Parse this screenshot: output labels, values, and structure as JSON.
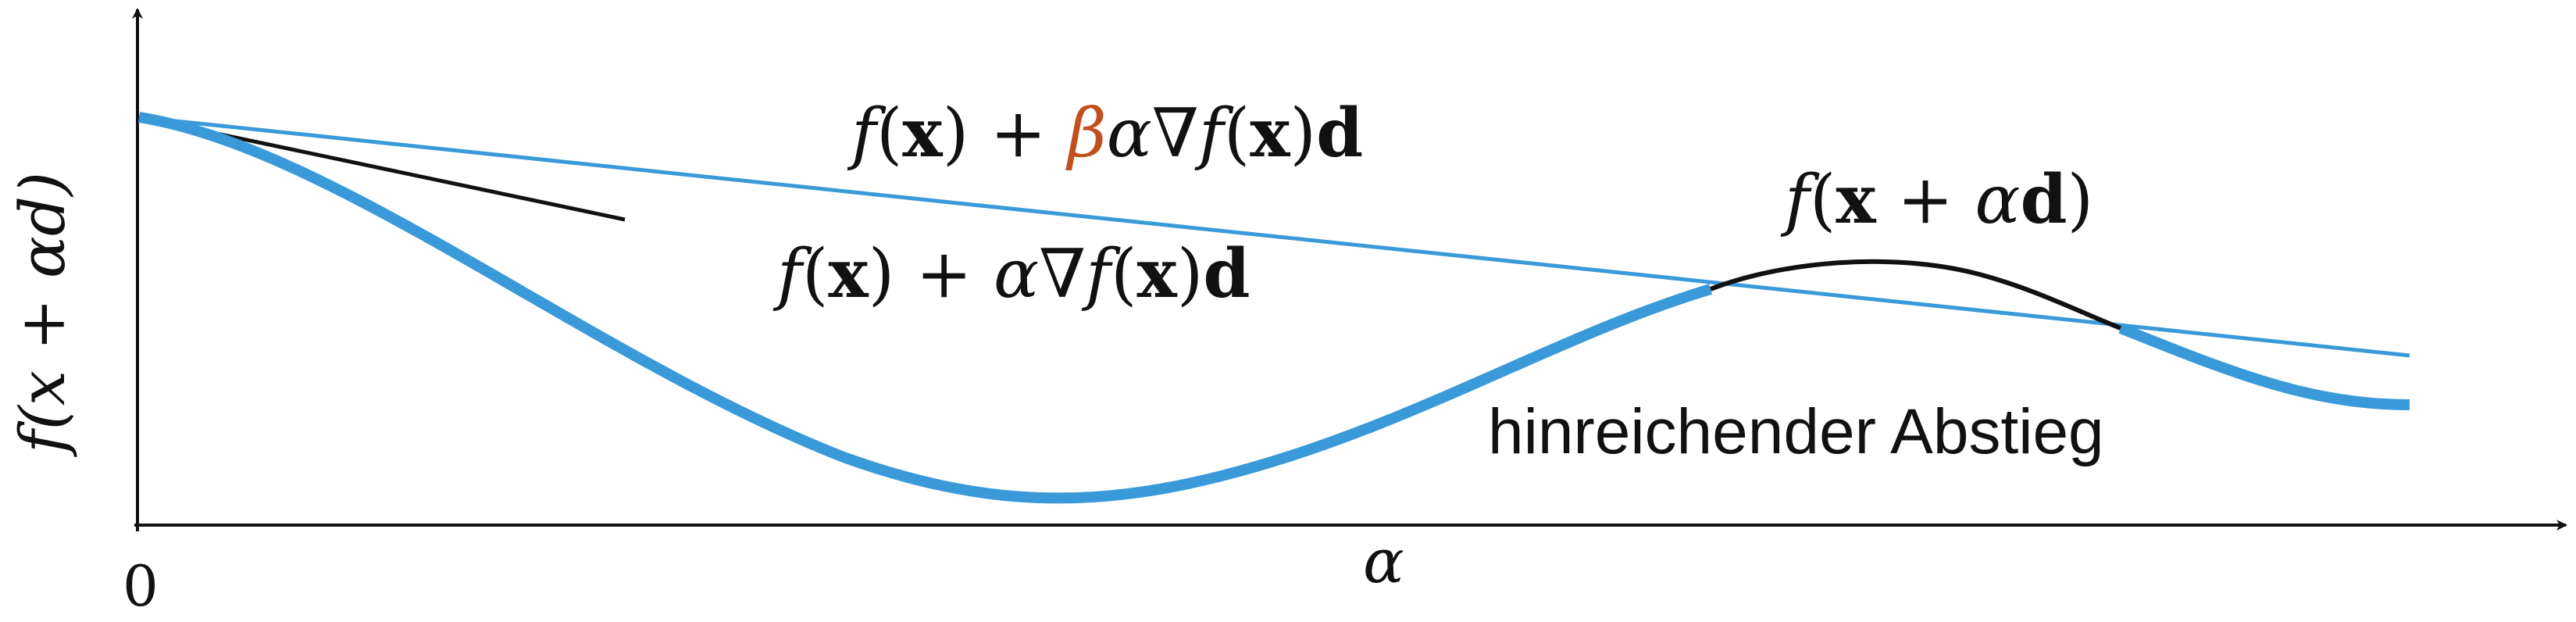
{
  "axes": {
    "x_label": "α",
    "y_label": "f(x + αd)",
    "origin_label": "0"
  },
  "labels": {
    "armijo_line": {
      "f": "f",
      "open_paren": "(",
      "x": "x",
      "close_plus": ") + ",
      "beta": "β",
      "alpha": "α",
      "grad": "∇",
      "f2": "f",
      "open2": "(",
      "x2": "x",
      "close2": ")",
      "d": "d"
    },
    "tangent_line": {
      "f": "f",
      "open_paren": "(",
      "x": "x",
      "close_plus": ") + ",
      "alpha": "α",
      "grad": "∇",
      "f2": "f",
      "open2": "(",
      "x2": "x",
      "close2": ")",
      "d": "d"
    },
    "function_curve": {
      "f": "f",
      "open_paren": "(",
      "x": "x",
      "plus": " + ",
      "alpha": "α",
      "d": "d",
      "close": ")"
    },
    "region_text": "hinreichender Abstieg"
  },
  "colors": {
    "curve_accepted": "#3a9ad9",
    "curve_rejected": "#111111",
    "armijo_line": "#3a9ad9",
    "tangent_line": "#111111",
    "beta": "#c0501e",
    "axes": "#111111"
  }
}
